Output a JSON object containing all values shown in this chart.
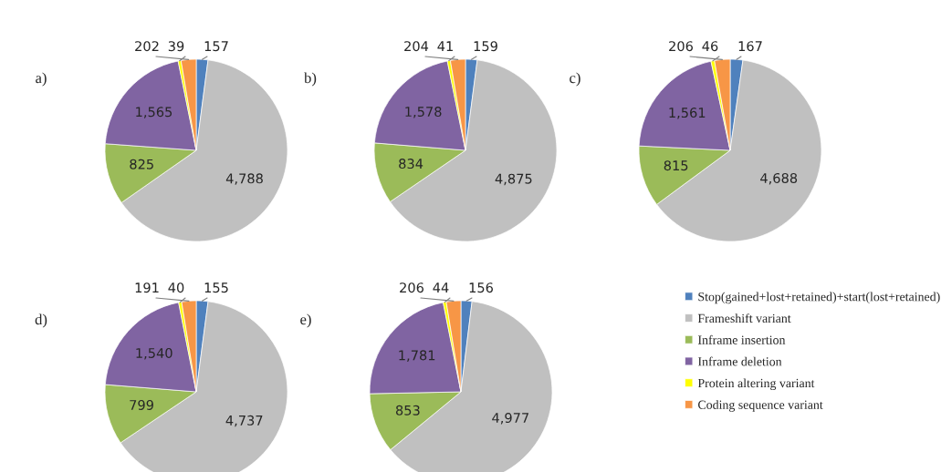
{
  "chart_data": [
    {
      "type": "pie",
      "title": "a)",
      "categories": [
        "Stop(gained+lost+retained)+start(lost+retained)",
        "Frameshift variant",
        "Inframe insertion",
        "Inframe deletion",
        "Protein altering variant",
        "Coding sequence variant"
      ],
      "values": [
        157,
        4788,
        825,
        1565,
        39,
        202
      ],
      "value_labels": [
        "157",
        "4,788",
        "825",
        "1,565",
        "39",
        "202"
      ],
      "colors": [
        "#4f81bd",
        "#c0c0c0",
        "#9bbb59",
        "#8064a2",
        "#ffff00",
        "#f79646"
      ],
      "legend": "right"
    },
    {
      "type": "pie",
      "title": "b)",
      "categories": [
        null,
        null,
        null,
        null,
        null,
        null
      ],
      "values": [
        159,
        4875,
        834,
        1578,
        41,
        204
      ],
      "value_labels": [
        "159",
        "4,875",
        "834",
        "1,578",
        "41",
        "204"
      ],
      "colors": [
        "#4f81bd",
        "#c0c0c0",
        "#9bbb59",
        "#8064a2",
        "#ffff00",
        "#f79646"
      ]
    },
    {
      "type": "pie",
      "title": "c)",
      "categories": [
        null,
        null,
        null,
        null,
        null,
        null
      ],
      "values": [
        167,
        4688,
        815,
        1561,
        46,
        206
      ],
      "value_labels": [
        "167",
        "4,688",
        "815",
        "1,561",
        "46",
        "206"
      ],
      "colors": [
        "#4f81bd",
        "#c0c0c0",
        "#9bbb59",
        "#8064a2",
        "#ffff00",
        "#f79646"
      ]
    },
    {
      "type": "pie",
      "title": "d)",
      "categories": [
        null,
        null,
        null,
        null,
        null,
        null
      ],
      "values": [
        155,
        4737,
        799,
        1540,
        40,
        191
      ],
      "value_labels": [
        "155",
        "4,737",
        "799",
        "1,540",
        "40",
        "191"
      ],
      "colors": [
        "#4f81bd",
        "#c0c0c0",
        "#9bbb59",
        "#8064a2",
        "#ffff00",
        "#f79646"
      ]
    },
    {
      "type": "pie",
      "title": "e)",
      "categories": [
        null,
        null,
        null,
        null,
        null,
        null
      ],
      "values": [
        156,
        4977,
        853,
        1781,
        44,
        206
      ],
      "value_labels": [
        "156",
        "4,977",
        "853",
        "1,781",
        "44",
        "206"
      ],
      "colors": [
        "#4f81bd",
        "#c0c0c0",
        "#9bbb59",
        "#8064a2",
        "#ffff00",
        "#f79646"
      ]
    }
  ]
}
